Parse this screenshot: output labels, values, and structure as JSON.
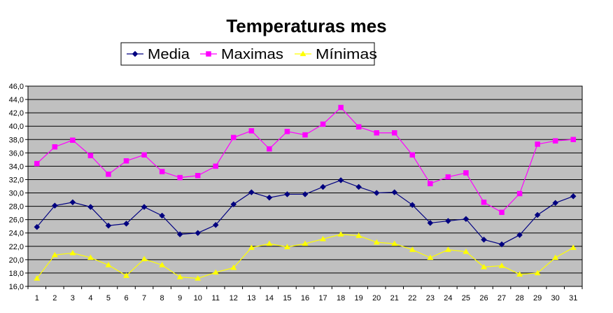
{
  "chart_data": {
    "type": "line",
    "title": "Temperaturas mes",
    "xlabel": "",
    "ylabel": "",
    "categories": [
      "1",
      "2",
      "3",
      "4",
      "5",
      "6",
      "7",
      "8",
      "9",
      "10",
      "11",
      "12",
      "13",
      "14",
      "15",
      "16",
      "17",
      "18",
      "19",
      "20",
      "21",
      "22",
      "23",
      "24",
      "25",
      "26",
      "27",
      "28",
      "29",
      "30",
      "31"
    ],
    "ylim": [
      16.0,
      46.0
    ],
    "ytick_step": 2.0,
    "ytick_labels": [
      "16,0",
      "18,0",
      "20,0",
      "22,0",
      "24,0",
      "26,0",
      "28,0",
      "30,0",
      "32,0",
      "34,0",
      "36,0",
      "38,0",
      "40,0",
      "42,0",
      "44,0",
      "46,0"
    ],
    "grid": true,
    "plot_background": "#c0c0c0",
    "legend_position": "top",
    "series": [
      {
        "name": "Media",
        "color": "#000080",
        "marker": "diamond",
        "values": [
          24.9,
          28.1,
          28.6,
          27.9,
          25.1,
          25.4,
          27.9,
          26.6,
          23.8,
          24.0,
          25.2,
          28.3,
          30.1,
          29.3,
          29.8,
          29.8,
          30.9,
          31.9,
          30.9,
          30.0,
          30.1,
          28.2,
          25.5,
          25.8,
          26.1,
          23.0,
          22.3,
          23.7,
          26.7,
          28.5,
          29.5
        ]
      },
      {
        "name": "Maximas",
        "color": "#ff00ff",
        "marker": "square",
        "values": [
          34.4,
          36.9,
          37.9,
          35.6,
          32.8,
          34.8,
          35.7,
          33.2,
          32.3,
          32.6,
          34.0,
          38.3,
          39.3,
          36.6,
          39.2,
          38.7,
          40.3,
          42.8,
          39.9,
          39.0,
          39.0,
          35.7,
          31.4,
          32.4,
          33.0,
          28.6,
          27.1,
          29.9,
          37.3,
          37.8,
          38.0
        ]
      },
      {
        "name": "Mínimas",
        "color": "#ffff00",
        "marker": "triangle",
        "values": [
          17.2,
          20.7,
          21.0,
          20.3,
          19.2,
          17.6,
          20.1,
          19.2,
          17.4,
          17.2,
          18.1,
          18.8,
          21.8,
          22.4,
          21.9,
          22.4,
          23.1,
          23.8,
          23.6,
          22.6,
          22.4,
          21.5,
          20.3,
          21.5,
          21.2,
          18.9,
          19.1,
          17.8,
          18.0,
          20.3,
          21.8
        ]
      }
    ]
  }
}
